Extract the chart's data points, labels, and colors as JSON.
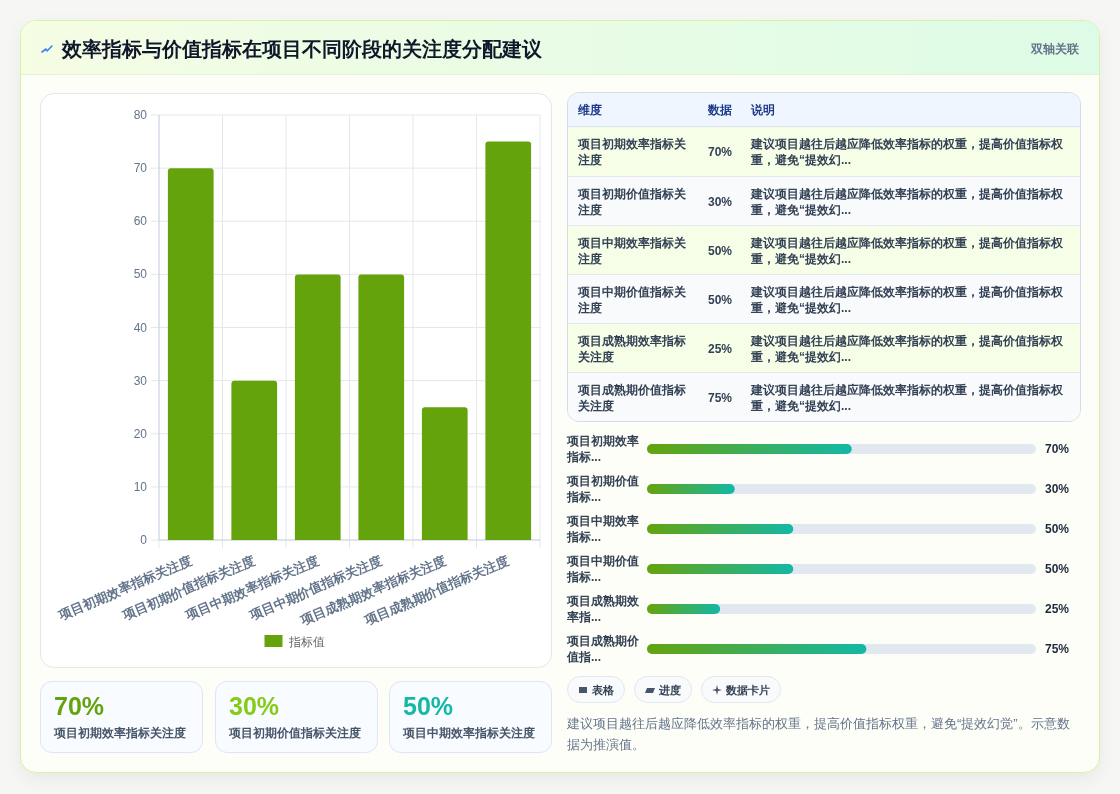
{
  "chart_data": [
    {
      "type": "bar",
      "title": "效率指标与价值指标在项目不同阶段的关注度分配建议",
      "categories": [
        "项目初期效率指标关注度",
        "项目初期价值指标关注度",
        "项目中期效率指标关注度",
        "项目中期价值指标关注度",
        "项目成熟期效率指标关注度",
        "项目成熟期价值指标关注度"
      ],
      "series": [
        {
          "name": "指标值",
          "color": "#65a30d",
          "values": [
            70,
            30,
            50,
            50,
            25,
            75
          ]
        }
      ],
      "ylim": [
        0,
        80
      ],
      "yticks": [
        0,
        10,
        20,
        30,
        40,
        50,
        60,
        70,
        80
      ],
      "grid": true,
      "legend": "bottom"
    },
    {
      "type": "other",
      "subtitle": "双轴关联",
      "annotations": [
        "维度",
        "数据",
        "说明",
        "项目初期效率指标关注度",
        "70%",
        "建议项目越往后越应降低效率指标的权重，提高价值指标权重，避免“提效幻...",
        "项目初期价值指标关注度",
        "30%",
        "建议项目越往后越应降低效率指标的权重，提高价值指标权重，避免“提效幻...",
        "项目中期效率指标关注度",
        "50%",
        "建议项目越往后越应降低效率指标的权重，提高价值指标权重，避免“提效幻...",
        "项目中期价值指标关注度",
        "50%",
        "建议项目越往后越应降低效率指标的权重，提高价值指标权重，避免“提效幻...",
        "项目成熟期效率指标关注度",
        "25%",
        "建议项目越往后越应降低效率指标的权重，提高价值指标权重，避免“提效幻...",
        "项目成熟期价值指标关注度",
        "75%",
        "建议项目越往后越应降低效率指标的权重，提高价值指标权重，避免“提效幻..."
      ]
    },
    {
      "type": "bar",
      "orientation": "horizontal",
      "categories": [
        "项目初期效率指标...",
        "项目初期价值指标...",
        "项目中期效率指标...",
        "项目中期价值指标...",
        "项目成熟期效率指...",
        "项目成熟期价值指..."
      ],
      "values": [
        70,
        30,
        50,
        50,
        25,
        75
      ],
      "value_labels": [
        "70%",
        "30%",
        "50%",
        "50%",
        "25%",
        "75%"
      ],
      "color": "#65a30d",
      "xlim": [
        0,
        133
      ],
      "tick_labels": "y",
      "annotations": [
        "表格",
        "进度",
        "数据卡片",
        "建议项目越往后越应降低效率指标的权重，提高价值指标权重，避免“提效幻觉”。示意数据为推演值。"
      ]
    },
    {
      "type": "other",
      "annotations": [
        "70%",
        "项目初期效率指标关注度",
        "30%",
        "项目初期价值指标关注度",
        "50%",
        "项目中期效率指标关注度"
      ]
    }
  ]
}
